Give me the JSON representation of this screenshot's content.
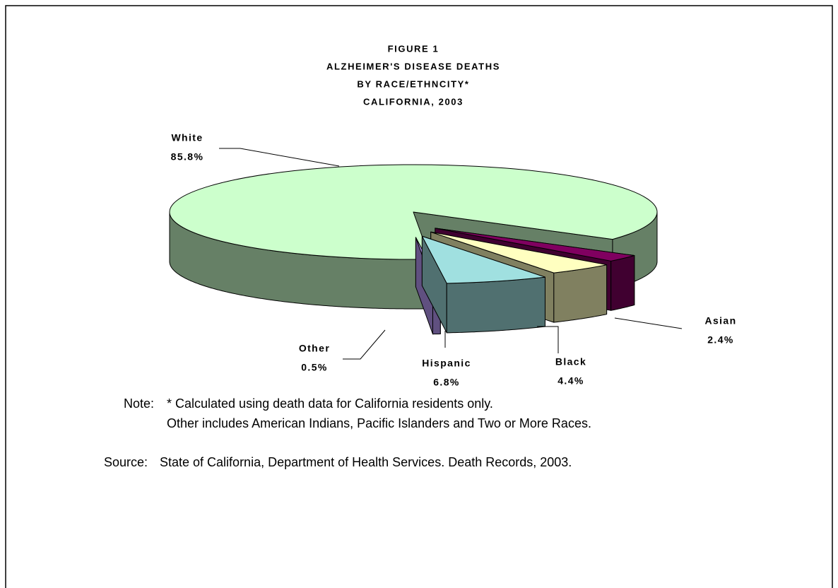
{
  "chart_data": {
    "type": "pie3d",
    "title_lines": [
      "FIGURE 1",
      "ALZHEIMER'S DISEASE DEATHS",
      "BY RACE/ETHNCITY*",
      "CALIFORNIA, 2003"
    ],
    "categories": [
      "White",
      "Asian",
      "Black",
      "Hispanic",
      "Other"
    ],
    "values": [
      85.8,
      2.4,
      4.4,
      6.8,
      0.5
    ],
    "value_labels": [
      "85.8%",
      "2.4%",
      "4.4%",
      "6.8%",
      "0.5%"
    ],
    "colors": [
      "#ccffcc",
      "#800060",
      "#ffffc0",
      "#a0e0e0",
      "#c0a0ff"
    ],
    "notes": {
      "note_label": "Note:",
      "note_lines": [
        "* Calculated using death data for California residents only.",
        "Other includes American Indians, Pacific Islanders and Two or More Races."
      ],
      "source_label": "Source:",
      "source": "State of California, Department of Health Services.  Death Records, 2003."
    }
  }
}
